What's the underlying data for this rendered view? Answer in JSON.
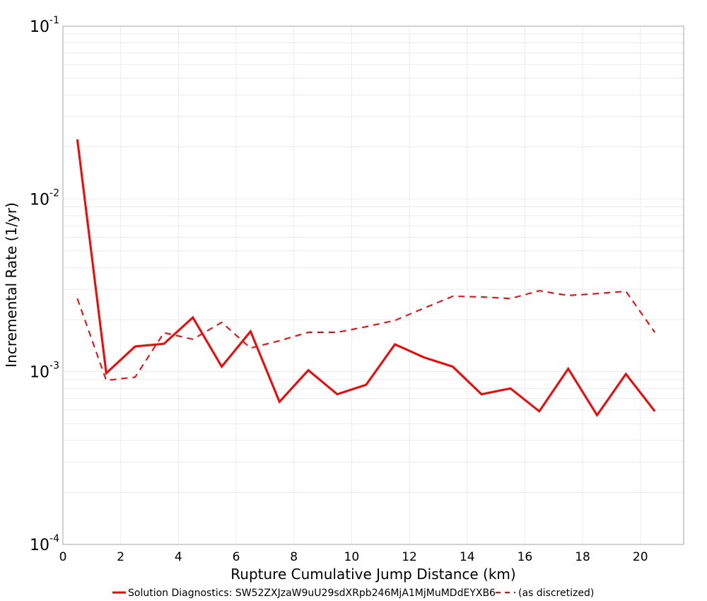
{
  "chart_data": {
    "type": "line",
    "title": "",
    "xlabel": "Rupture Cumulative Jump Distance (km)",
    "ylabel": "Incremental Rate (1/yr)",
    "xscale": "linear",
    "yscale": "log",
    "xlim": [
      0,
      21.5
    ],
    "ylim": [
      0.0001,
      0.1
    ],
    "x_ticks": [
      0,
      2,
      4,
      6,
      8,
      10,
      12,
      14,
      16,
      18,
      20
    ],
    "y_ticks": [
      {
        "value": 0.1,
        "base": "10",
        "exp": "-1"
      },
      {
        "value": 0.01,
        "base": "10",
        "exp": "-2"
      },
      {
        "value": 0.001,
        "base": "10",
        "exp": "-3"
      },
      {
        "value": 0.0001,
        "base": "10",
        "exp": "-4"
      }
    ],
    "grid": true,
    "legend_position": "bottom",
    "x": [
      0.5,
      1.5,
      2.5,
      3.5,
      4.5,
      5.5,
      6.5,
      7.5,
      8.5,
      9.5,
      10.5,
      11.5,
      12.5,
      13.5,
      14.5,
      15.5,
      16.5,
      17.5,
      18.5,
      19.5,
      20.5
    ],
    "series": [
      {
        "name": "Solution Diagnostics: SW52ZXJzaW9uU29sdXRpb246MjA1MjMuMDdEYXB6",
        "color": "#ff0000",
        "style": "solid",
        "values": [
          0.0221,
          0.00098,
          0.0014,
          0.00145,
          0.00206,
          0.00107,
          0.00171,
          0.00067,
          0.00102,
          0.00074,
          0.00084,
          0.00144,
          0.00121,
          0.00107,
          0.00074,
          0.0008,
          0.00059,
          0.00104,
          0.00056,
          0.00097,
          0.00059
        ]
      },
      {
        "name": "(as discretized)",
        "color": "#ff0000",
        "style": "dashed",
        "values": [
          0.00265,
          0.00089,
          0.00093,
          0.00168,
          0.00154,
          0.00193,
          0.00137,
          0.00151,
          0.00169,
          0.00169,
          0.00182,
          0.00198,
          0.00233,
          0.00273,
          0.00271,
          0.00265,
          0.00294,
          0.00276,
          0.00283,
          0.00292,
          0.00169
        ]
      }
    ]
  },
  "legend": {
    "items": [
      {
        "label": "Solution Diagnostics: SW52ZXJzaW9uU29sdXRpb246MjA1MjMuMDdEYXB6",
        "style": "solid"
      },
      {
        "label": "(as discretized)",
        "style": "dashed"
      }
    ]
  },
  "colors": {
    "series": "#ff0000",
    "grid": "#ebebeb",
    "frame": "#b4b4b4"
  }
}
